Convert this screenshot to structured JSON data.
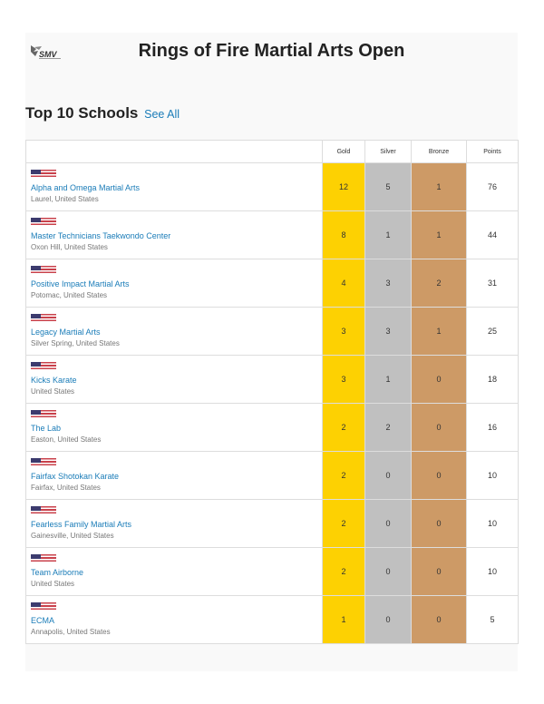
{
  "header": {
    "logo_text": "SMV",
    "title": "Rings of Fire Martial Arts Open"
  },
  "section": {
    "heading": "Top 10 Schools",
    "see_all": "See All"
  },
  "colors": {
    "gold": "#fdd102",
    "silver": "#c0c0c0",
    "bronze": "#cd9a66",
    "link": "#1a7cb8"
  },
  "table": {
    "columns": [
      "Gold",
      "Silver",
      "Bronze",
      "Points"
    ],
    "rows": [
      {
        "flag": "us-flag-icon",
        "name": "Alpha and Omega Martial Arts",
        "location": "Laurel, United States",
        "gold": "12",
        "silver": "5",
        "bronze": "1",
        "points": "76"
      },
      {
        "flag": "us-flag-icon",
        "name": "Master Technicians Taekwondo Center",
        "location": "Oxon Hill, United States",
        "gold": "8",
        "silver": "1",
        "bronze": "1",
        "points": "44"
      },
      {
        "flag": "us-flag-icon",
        "name": "Positive Impact Martial Arts",
        "location": "Potomac, United States",
        "gold": "4",
        "silver": "3",
        "bronze": "2",
        "points": "31"
      },
      {
        "flag": "us-flag-icon",
        "name": "Legacy Martial Arts",
        "location": "Silver Spring, United States",
        "gold": "3",
        "silver": "3",
        "bronze": "1",
        "points": "25"
      },
      {
        "flag": "us-flag-icon",
        "name": "Kicks Karate",
        "location": "United States",
        "gold": "3",
        "silver": "1",
        "bronze": "0",
        "points": "18"
      },
      {
        "flag": "us-flag-icon",
        "name": "The Lab",
        "location": "Easton, United States",
        "gold": "2",
        "silver": "2",
        "bronze": "0",
        "points": "16"
      },
      {
        "flag": "us-flag-icon",
        "name": "Fairfax Shotokan Karate",
        "location": "Fairfax, United States",
        "gold": "2",
        "silver": "0",
        "bronze": "0",
        "points": "10"
      },
      {
        "flag": "us-flag-icon",
        "name": "Fearless Family Martial Arts",
        "location": "Gainesville, United States",
        "gold": "2",
        "silver": "0",
        "bronze": "0",
        "points": "10"
      },
      {
        "flag": "us-flag-icon",
        "name": "Team Airborne",
        "location": "United States",
        "gold": "2",
        "silver": "0",
        "bronze": "0",
        "points": "10"
      },
      {
        "flag": "us-flag-icon",
        "name": "ECMA",
        "location": "Annapolis, United States",
        "gold": "1",
        "silver": "0",
        "bronze": "0",
        "points": "5"
      }
    ]
  }
}
